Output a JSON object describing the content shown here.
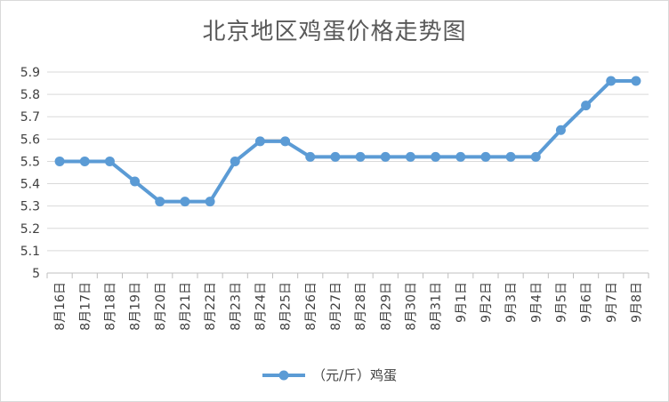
{
  "chart_data": {
    "type": "line",
    "title": "北京地区鸡蛋价格走势图",
    "categories": [
      "8月16日",
      "8月17日",
      "8月18日",
      "8月19日",
      "8月20日",
      "8月21日",
      "8月22日",
      "8月23日",
      "8月24日",
      "8月25日",
      "8月26日",
      "8月27日",
      "8月28日",
      "8月29日",
      "8月30日",
      "8月31日",
      "9月1日",
      "9月2日",
      "9月3日",
      "9月4日",
      "9月5日",
      "9月6日",
      "9月7日",
      "9月8日"
    ],
    "series": [
      {
        "name": "（元/斤）鸡蛋",
        "values": [
          5.5,
          5.5,
          5.5,
          5.41,
          5.32,
          5.32,
          5.32,
          5.5,
          5.59,
          5.59,
          5.52,
          5.52,
          5.52,
          5.52,
          5.52,
          5.52,
          5.52,
          5.52,
          5.52,
          5.52,
          5.64,
          5.75,
          5.86,
          5.86
        ],
        "color": "#5b9bd5"
      }
    ],
    "yticks": [
      "5",
      "5.1",
      "5.2",
      "5.3",
      "5.4",
      "5.5",
      "5.6",
      "5.7",
      "5.8",
      "5.9"
    ],
    "ylim": [
      5,
      5.9
    ],
    "grid": true,
    "legend_position": "bottom"
  }
}
